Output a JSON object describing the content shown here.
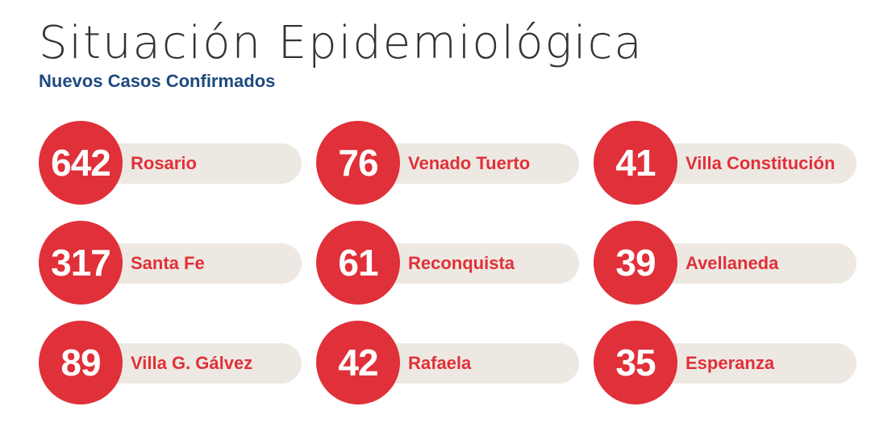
{
  "header": {
    "title": "Situación Epidemiológica",
    "subtitle": "Nuevos Casos Confirmados"
  },
  "cities": [
    {
      "count": "642",
      "name": "Rosario"
    },
    {
      "count": "76",
      "name": "Venado Tuerto"
    },
    {
      "count": "41",
      "name": "Villa Constitución"
    },
    {
      "count": "317",
      "name": "Santa Fe"
    },
    {
      "count": "61",
      "name": "Reconquista"
    },
    {
      "count": "39",
      "name": "Avellaneda"
    },
    {
      "count": "89",
      "name": "Villa G. Gálvez"
    },
    {
      "count": "42",
      "name": "Rafaela"
    },
    {
      "count": "35",
      "name": "Esperanza"
    }
  ],
  "colors": {
    "accent_red": "#e03039",
    "subtitle_blue": "#1e4a7e",
    "pill_beige": "#ede8e2",
    "title_gray": "#333333"
  }
}
